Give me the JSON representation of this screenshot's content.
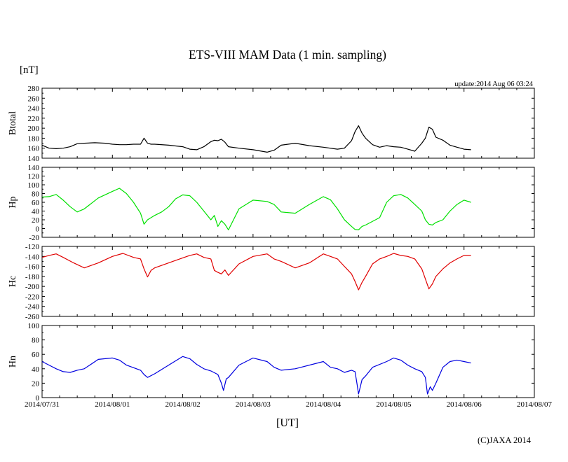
{
  "header": {
    "title": "ETS-VIII MAM Data (1 min. sampling)",
    "unit": "[nT]",
    "update": "update:2014 Aug 06 03:24"
  },
  "footer": {
    "xlabel": "[UT]",
    "credit": "(C)JAXA 2014"
  },
  "chart_data": [
    {
      "type": "line",
      "panel": "Btotal",
      "ylabel": "Btotal",
      "ylim": [
        140,
        280
      ],
      "yticks": [
        280,
        260,
        240,
        220,
        200,
        180,
        160,
        140
      ],
      "xlim": [
        0,
        7
      ],
      "xtick_labels": [
        "2014/07/31",
        "2014/08/01",
        "2014/08/02",
        "2014/08/03",
        "2014/08/04",
        "2014/08/05",
        "2014/08/06",
        "2014/08/07"
      ],
      "grid": false,
      "color": "#000000",
      "series": [
        {
          "x": [
            0.0,
            0.1,
            0.2,
            0.3,
            0.4,
            0.5,
            0.6,
            0.75,
            0.9,
            1.0,
            1.1,
            1.2,
            1.3,
            1.4,
            1.45,
            1.5,
            1.55,
            1.6,
            1.8,
            2.0,
            2.1,
            2.2,
            2.3,
            2.4,
            2.45,
            2.5,
            2.55,
            2.6,
            2.65,
            2.8,
            3.0,
            3.2,
            3.3,
            3.4,
            3.6,
            3.8,
            4.0,
            4.2,
            4.3,
            4.4,
            4.45,
            4.5,
            4.55,
            4.6,
            4.7,
            4.8,
            4.9,
            5.0,
            5.1,
            5.2,
            5.3,
            5.4,
            5.45,
            5.5,
            5.55,
            5.6,
            5.7,
            5.8,
            5.9,
            6.0,
            6.1
          ],
          "values": [
            166,
            160,
            159,
            160,
            163,
            169,
            170,
            171,
            170,
            168,
            167,
            167,
            168,
            168,
            180,
            170,
            168,
            168,
            166,
            163,
            158,
            157,
            163,
            173,
            176,
            175,
            178,
            172,
            163,
            160,
            157,
            152,
            156,
            166,
            170,
            165,
            162,
            158,
            160,
            175,
            193,
            205,
            190,
            180,
            167,
            162,
            165,
            163,
            162,
            158,
            154,
            170,
            180,
            202,
            198,
            182,
            176,
            166,
            162,
            158,
            157
          ]
        }
      ]
    },
    {
      "type": "line",
      "panel": "Hp",
      "ylabel": "Hp",
      "ylim": [
        -20,
        140
      ],
      "yticks": [
        140,
        120,
        100,
        80,
        60,
        40,
        20,
        0,
        -20
      ],
      "xlim": [
        0,
        7
      ],
      "grid": false,
      "color": "#00e000",
      "series": [
        {
          "x": [
            0.0,
            0.1,
            0.2,
            0.3,
            0.4,
            0.5,
            0.6,
            0.8,
            1.0,
            1.1,
            1.2,
            1.3,
            1.4,
            1.45,
            1.5,
            1.6,
            1.7,
            1.8,
            1.9,
            2.0,
            2.1,
            2.2,
            2.3,
            2.4,
            2.45,
            2.5,
            2.55,
            2.6,
            2.65,
            2.8,
            3.0,
            3.2,
            3.3,
            3.4,
            3.6,
            3.8,
            4.0,
            4.1,
            4.2,
            4.3,
            4.4,
            4.45,
            4.5,
            4.55,
            4.6,
            4.8,
            4.9,
            5.0,
            5.1,
            5.2,
            5.3,
            5.4,
            5.45,
            5.5,
            5.55,
            5.6,
            5.7,
            5.8,
            5.9,
            6.0,
            6.1
          ],
          "values": [
            72,
            73,
            78,
            65,
            50,
            38,
            45,
            70,
            85,
            92,
            80,
            60,
            35,
            10,
            20,
            30,
            38,
            50,
            68,
            77,
            75,
            60,
            40,
            20,
            30,
            5,
            18,
            10,
            -3,
            45,
            65,
            62,
            55,
            38,
            35,
            55,
            73,
            66,
            45,
            20,
            5,
            -2,
            -3,
            5,
            8,
            25,
            60,
            75,
            78,
            70,
            55,
            40,
            20,
            10,
            8,
            14,
            20,
            40,
            55,
            65,
            60
          ]
        }
      ]
    },
    {
      "type": "line",
      "panel": "Hc",
      "ylabel": "Hc",
      "ylim": [
        -260,
        -120
      ],
      "yticks": [
        -120,
        -140,
        -160,
        -180,
        -200,
        -220,
        -240,
        -260
      ],
      "xlim": [
        0,
        7
      ],
      "grid": false,
      "color": "#e00000",
      "series": [
        {
          "x": [
            0.0,
            0.1,
            0.2,
            0.3,
            0.45,
            0.6,
            0.8,
            1.0,
            1.15,
            1.3,
            1.4,
            1.45,
            1.5,
            1.55,
            1.6,
            1.8,
            2.0,
            2.1,
            2.2,
            2.3,
            2.4,
            2.45,
            2.5,
            2.55,
            2.6,
            2.65,
            2.8,
            3.0,
            3.2,
            3.3,
            3.4,
            3.6,
            3.8,
            4.0,
            4.1,
            4.2,
            4.3,
            4.4,
            4.45,
            4.5,
            4.55,
            4.6,
            4.7,
            4.8,
            4.9,
            5.0,
            5.1,
            5.2,
            5.3,
            5.4,
            5.45,
            5.5,
            5.55,
            5.6,
            5.7,
            5.8,
            5.9,
            6.0,
            6.1
          ],
          "values": [
            -142,
            -138,
            -135,
            -142,
            -153,
            -163,
            -153,
            -140,
            -134,
            -142,
            -145,
            -165,
            -181,
            -168,
            -163,
            -153,
            -143,
            -138,
            -135,
            -142,
            -145,
            -168,
            -172,
            -175,
            -167,
            -178,
            -155,
            -140,
            -135,
            -145,
            -150,
            -163,
            -153,
            -135,
            -140,
            -145,
            -160,
            -175,
            -190,
            -207,
            -192,
            -180,
            -155,
            -145,
            -140,
            -134,
            -138,
            -140,
            -145,
            -165,
            -185,
            -205,
            -195,
            -180,
            -165,
            -153,
            -145,
            -138,
            -138
          ]
        }
      ]
    },
    {
      "type": "line",
      "panel": "Hn",
      "ylabel": "Hn",
      "ylim": [
        0,
        100
      ],
      "yticks": [
        100,
        80,
        60,
        40,
        20,
        0
      ],
      "xlim": [
        0,
        7
      ],
      "grid": false,
      "color": "#0000e0",
      "series": [
        {
          "x": [
            0.0,
            0.1,
            0.2,
            0.3,
            0.4,
            0.5,
            0.6,
            0.8,
            1.0,
            1.1,
            1.2,
            1.4,
            1.45,
            1.5,
            1.6,
            1.8,
            2.0,
            2.1,
            2.2,
            2.3,
            2.4,
            2.5,
            2.55,
            2.58,
            2.62,
            2.65,
            2.8,
            3.0,
            3.2,
            3.3,
            3.4,
            3.6,
            4.0,
            4.1,
            4.2,
            4.3,
            4.4,
            4.45,
            4.48,
            4.5,
            4.55,
            4.6,
            4.7,
            4.9,
            5.0,
            5.1,
            5.2,
            5.3,
            5.4,
            5.45,
            5.48,
            5.52,
            5.55,
            5.6,
            5.7,
            5.8,
            5.9,
            6.0,
            6.1
          ],
          "values": [
            50,
            45,
            40,
            36,
            35,
            38,
            40,
            53,
            55,
            52,
            45,
            38,
            32,
            28,
            33,
            45,
            57,
            54,
            46,
            40,
            37,
            32,
            20,
            10,
            26,
            28,
            45,
            55,
            50,
            42,
            38,
            40,
            50,
            42,
            40,
            35,
            38,
            36,
            18,
            5,
            25,
            30,
            42,
            50,
            55,
            52,
            45,
            40,
            36,
            28,
            5,
            15,
            10,
            20,
            42,
            50,
            52,
            50,
            48
          ]
        }
      ]
    }
  ]
}
